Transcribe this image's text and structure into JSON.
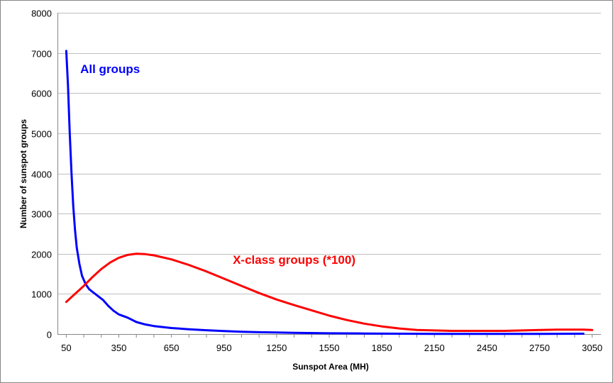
{
  "chart_data": {
    "type": "line",
    "title": "",
    "xlabel": "Sunspot Area (MH)",
    "ylabel": "Number of sunspot groups",
    "xlim": [
      0,
      3100
    ],
    "ylim": [
      0,
      8000
    ],
    "x_ticks": [
      50,
      350,
      650,
      950,
      1250,
      1550,
      1850,
      2150,
      2450,
      2750,
      3050
    ],
    "y_ticks": [
      0,
      1000,
      2000,
      3000,
      4000,
      5000,
      6000,
      7000,
      8000
    ],
    "grid": "horizontal",
    "series": [
      {
        "name": "All groups",
        "color": "#0000ff",
        "label_at": [
          130,
          6500
        ],
        "points": [
          [
            50,
            7050
          ],
          [
            60,
            6200
          ],
          [
            70,
            5000
          ],
          [
            80,
            4000
          ],
          [
            90,
            3200
          ],
          [
            100,
            2600
          ],
          [
            110,
            2150
          ],
          [
            125,
            1750
          ],
          [
            140,
            1450
          ],
          [
            160,
            1250
          ],
          [
            180,
            1120
          ],
          [
            200,
            1050
          ],
          [
            230,
            950
          ],
          [
            260,
            850
          ],
          [
            290,
            700
          ],
          [
            320,
            580
          ],
          [
            350,
            490
          ],
          [
            400,
            410
          ],
          [
            450,
            300
          ],
          [
            500,
            240
          ],
          [
            550,
            200
          ],
          [
            650,
            150
          ],
          [
            750,
            120
          ],
          [
            850,
            95
          ],
          [
            950,
            75
          ],
          [
            1050,
            58
          ],
          [
            1150,
            46
          ],
          [
            1250,
            38
          ],
          [
            1350,
            30
          ],
          [
            1550,
            20
          ],
          [
            1750,
            14
          ],
          [
            1950,
            8
          ],
          [
            2150,
            6
          ],
          [
            2450,
            5
          ],
          [
            2750,
            6
          ],
          [
            3000,
            8
          ]
        ]
      },
      {
        "name": "X-class groups (*100)",
        "color": "#ff0000",
        "label_at": [
          1000,
          1750
        ],
        "points": [
          [
            50,
            800
          ],
          [
            100,
            1000
          ],
          [
            150,
            1200
          ],
          [
            200,
            1420
          ],
          [
            250,
            1620
          ],
          [
            300,
            1780
          ],
          [
            350,
            1900
          ],
          [
            400,
            1970
          ],
          [
            450,
            2000
          ],
          [
            500,
            1990
          ],
          [
            550,
            1960
          ],
          [
            650,
            1860
          ],
          [
            750,
            1720
          ],
          [
            850,
            1560
          ],
          [
            950,
            1380
          ],
          [
            1050,
            1200
          ],
          [
            1150,
            1020
          ],
          [
            1250,
            860
          ],
          [
            1350,
            720
          ],
          [
            1450,
            590
          ],
          [
            1550,
            460
          ],
          [
            1650,
            350
          ],
          [
            1750,
            260
          ],
          [
            1850,
            190
          ],
          [
            1950,
            140
          ],
          [
            2050,
            100
          ],
          [
            2150,
            90
          ],
          [
            2250,
            80
          ],
          [
            2450,
            80
          ],
          [
            2550,
            80
          ],
          [
            2650,
            90
          ],
          [
            2750,
            100
          ],
          [
            2850,
            110
          ],
          [
            3000,
            110
          ],
          [
            3050,
            100
          ]
        ]
      }
    ]
  }
}
